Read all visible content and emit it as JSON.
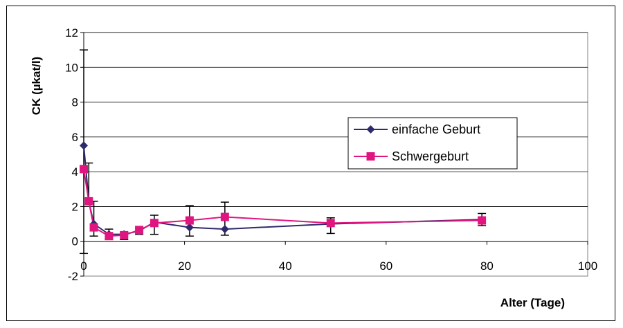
{
  "chart_data": {
    "type": "line",
    "title": "",
    "xlabel": "Alter (Tage)",
    "ylabel": "CK (µkat/l)",
    "xlim": [
      0,
      100
    ],
    "ylim": [
      -2,
      12
    ],
    "x_ticks": [
      0,
      20,
      40,
      60,
      80,
      100
    ],
    "y_ticks": [
      -2,
      0,
      2,
      4,
      6,
      8,
      10,
      12
    ],
    "grid": "horizontal",
    "legend": "center-right",
    "series": [
      {
        "name": "einfache Geburt",
        "color": "#2e2a6b",
        "marker": "diamond",
        "x": [
          0,
          1,
          2,
          5,
          8,
          11,
          14,
          21,
          28,
          49,
          79
        ],
        "y": [
          5.5,
          2.3,
          1.0,
          0.4,
          0.4,
          0.6,
          1.1,
          0.8,
          0.7,
          1.0,
          1.25
        ],
        "err_low": [
          -0.7,
          null,
          0.3,
          0.1,
          0.1,
          0.4,
          0.4,
          0.3,
          0.35,
          0.45,
          0.9
        ],
        "err_high": [
          11.0,
          4.5,
          2.3,
          0.7,
          0.5,
          0.75,
          1.5,
          2.05,
          2.25,
          1.35,
          1.6
        ]
      },
      {
        "name": "Schwergeburt",
        "color": "#e0157f",
        "marker": "square",
        "x": [
          0,
          1,
          2,
          5,
          8,
          11,
          14,
          21,
          28,
          49,
          79
        ],
        "y": [
          4.15,
          2.3,
          0.8,
          0.3,
          0.35,
          0.65,
          1.05,
          1.2,
          1.4,
          1.05,
          1.2
        ],
        "err_low": [
          null,
          null,
          null,
          null,
          null,
          null,
          null,
          null,
          null,
          null,
          null
        ],
        "err_high": [
          null,
          null,
          null,
          null,
          null,
          null,
          null,
          null,
          null,
          null,
          null
        ]
      }
    ]
  }
}
